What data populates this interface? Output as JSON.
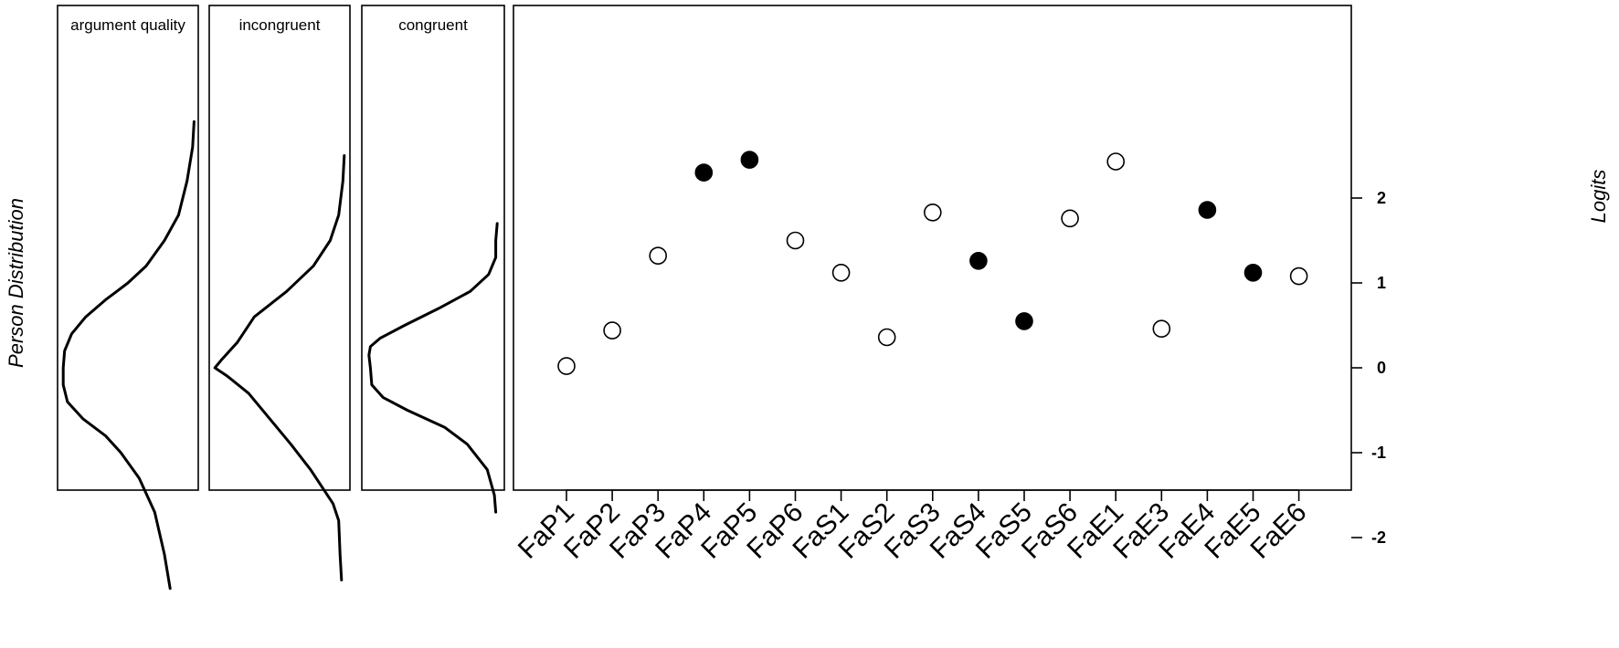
{
  "chart_data": [
    {
      "type": "line",
      "panel": "person-distribution",
      "ylabel": "Person Distribution",
      "ylim": [
        -2.6,
        2.9
      ],
      "series": [
        {
          "name": "argument quality",
          "y": [
            -2.6,
            -2.2,
            -1.7,
            -1.3,
            -1.0,
            -0.8,
            -0.6,
            -0.4,
            -0.2,
            0.0,
            0.2,
            0.4,
            0.6,
            0.8,
            1.0,
            1.2,
            1.5,
            1.8,
            2.2,
            2.6,
            2.9
          ],
          "density": [
            0.8,
            0.76,
            0.69,
            0.58,
            0.45,
            0.34,
            0.18,
            0.07,
            0.04,
            0.04,
            0.05,
            0.1,
            0.2,
            0.34,
            0.5,
            0.63,
            0.76,
            0.86,
            0.92,
            0.96,
            0.97
          ]
        },
        {
          "name": "incongruent",
          "y": [
            -2.5,
            -2.2,
            -1.8,
            -1.6,
            -1.4,
            -1.2,
            -0.9,
            -0.6,
            -0.3,
            -0.1,
            0.0,
            0.1,
            0.3,
            0.6,
            0.9,
            1.2,
            1.5,
            1.8,
            2.2,
            2.5
          ],
          "density": [
            0.94,
            0.93,
            0.92,
            0.88,
            0.8,
            0.72,
            0.58,
            0.43,
            0.28,
            0.13,
            0.04,
            0.09,
            0.2,
            0.32,
            0.55,
            0.74,
            0.86,
            0.92,
            0.95,
            0.96
          ]
        },
        {
          "name": "congruent",
          "y": [
            -1.7,
            -1.5,
            -1.2,
            -0.9,
            -0.7,
            -0.5,
            -0.35,
            -0.2,
            0.0,
            0.15,
            0.25,
            0.35,
            0.5,
            0.7,
            0.9,
            1.1,
            1.3,
            1.5,
            1.7
          ],
          "density": [
            0.94,
            0.93,
            0.88,
            0.74,
            0.58,
            0.32,
            0.15,
            0.07,
            0.06,
            0.05,
            0.06,
            0.13,
            0.3,
            0.54,
            0.76,
            0.89,
            0.94,
            0.94,
            0.95
          ]
        }
      ]
    },
    {
      "type": "scatter",
      "panel": "item-logits",
      "ylabel": "Logits",
      "ylim": [
        -2.6,
        2.9
      ],
      "yticks": [
        -2,
        -1,
        0,
        1,
        2
      ],
      "categories": [
        "FaP1",
        "FaP2",
        "FaP3",
        "FaP4",
        "FaP5",
        "FaP6",
        "FaS1",
        "FaS2",
        "FaS3",
        "FaS4",
        "FaS5",
        "FaS6",
        "FaE1",
        "FaE3",
        "FaE4",
        "FaE5",
        "FaE6"
      ],
      "values": [
        0.02,
        0.44,
        1.32,
        2.3,
        2.45,
        1.5,
        1.12,
        0.36,
        1.83,
        1.26,
        0.55,
        1.76,
        2.43,
        0.46,
        1.86,
        1.12,
        1.08
      ],
      "filled": [
        false,
        false,
        false,
        true,
        true,
        false,
        false,
        false,
        false,
        true,
        true,
        false,
        false,
        false,
        true,
        true,
        false
      ]
    }
  ]
}
